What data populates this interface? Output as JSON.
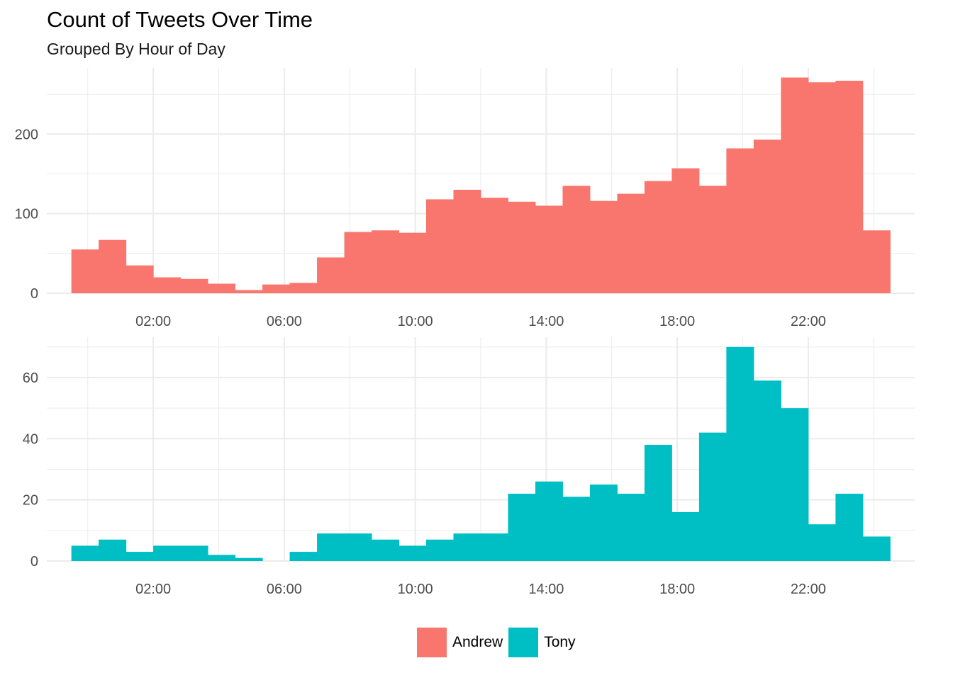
{
  "title": "Count of Tweets Over Time",
  "subtitle": "Grouped By Hour of Day",
  "legend": {
    "items": [
      {
        "label": "Andrew",
        "color": "#F8766D"
      },
      {
        "label": "Tony",
        "color": "#00BFC4"
      }
    ]
  },
  "chart_data": [
    {
      "type": "bar",
      "series": [
        {
          "name": "Andrew",
          "color": "#F8766D",
          "values": [
            55,
            67,
            35,
            20,
            18,
            12,
            4,
            11,
            13,
            45,
            77,
            79,
            76,
            118,
            130,
            120,
            115,
            110,
            135,
            116,
            125,
            141,
            157,
            135,
            182,
            193,
            271,
            265,
            267,
            79
          ]
        }
      ],
      "bins_x_hours_start": -0.5,
      "bin_width_hours": 0.8333,
      "x_ticks": [
        "02:00",
        "06:00",
        "10:00",
        "14:00",
        "18:00",
        "22:00"
      ],
      "x_tick_hours": [
        2,
        6,
        10,
        14,
        18,
        22
      ],
      "xlim_hours": [
        -1.25,
        25.25
      ],
      "y_ticks": [
        "0",
        "100",
        "200"
      ],
      "y_tick_values": [
        0,
        100,
        200
      ],
      "ylim": [
        0,
        283
      ],
      "grid": true
    },
    {
      "type": "bar",
      "series": [
        {
          "name": "Tony",
          "color": "#00BFC4",
          "values": [
            5,
            7,
            3,
            5,
            5,
            2,
            1,
            0,
            3,
            9,
            9,
            7,
            5,
            7,
            9,
            9,
            22,
            26,
            21,
            25,
            22,
            38,
            16,
            42,
            70,
            59,
            50,
            12,
            22,
            8
          ]
        }
      ],
      "bins_x_hours_start": -0.5,
      "bin_width_hours": 0.8333,
      "x_ticks": [
        "02:00",
        "06:00",
        "10:00",
        "14:00",
        "18:00",
        "22:00"
      ],
      "x_tick_hours": [
        2,
        6,
        10,
        14,
        18,
        22
      ],
      "xlim_hours": [
        -1.25,
        25.25
      ],
      "y_ticks": [
        "0",
        "20",
        "40",
        "60"
      ],
      "y_tick_values": [
        0,
        20,
        40,
        60
      ],
      "ylim": [
        0,
        73.2
      ],
      "grid": true
    }
  ]
}
